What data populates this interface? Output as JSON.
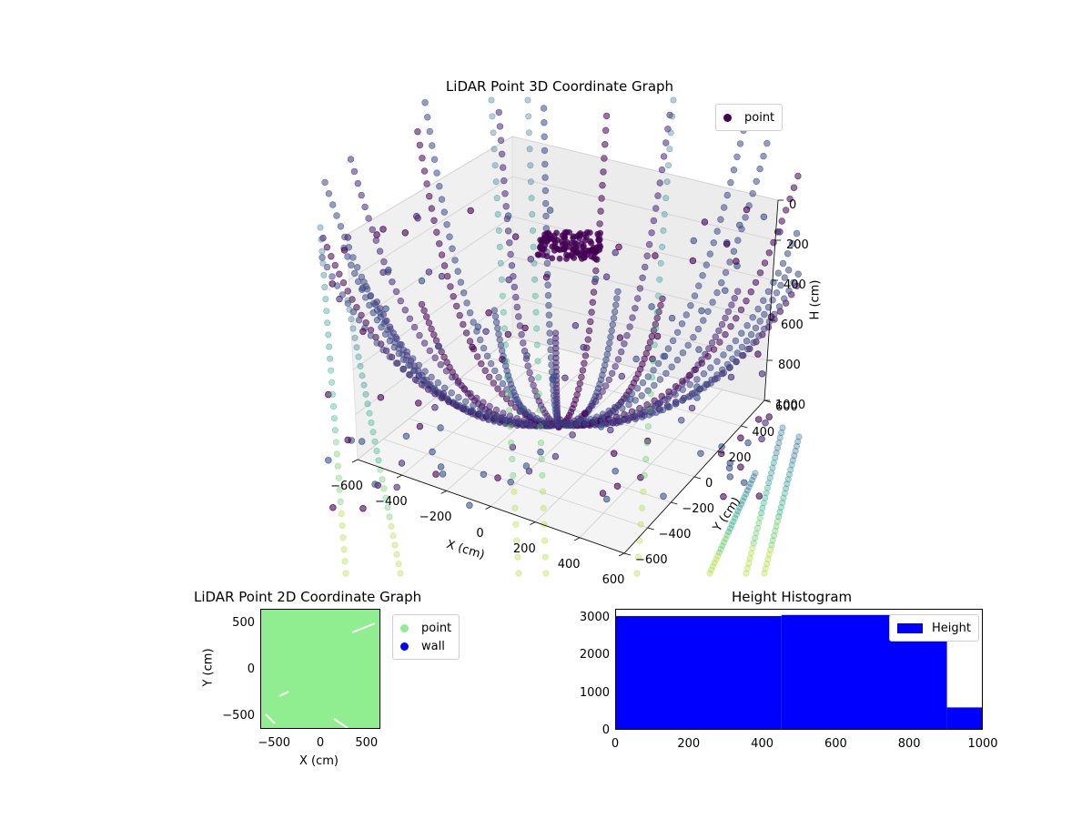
{
  "chart_data": [
    {
      "type": "scatter",
      "title": "LiDAR Point 3D Coordinate Graph",
      "xlabel": "X (cm)",
      "ylabel": "Y (cm)",
      "zlabel": "H (cm)",
      "xticks": [
        "−600",
        "−400",
        "−200",
        "0",
        "200",
        "400",
        "600"
      ],
      "yticks": [
        "−600",
        "−400",
        "−200",
        "0",
        "200",
        "400",
        "600"
      ],
      "zticks": [
        "0",
        "200",
        "400",
        "600",
        "800",
        "1000"
      ],
      "zlim": [
        0,
        1000
      ],
      "z_inverted": true,
      "colormap": "viridis",
      "legend": {
        "label": "point",
        "color": "#440154",
        "placement": "top-right"
      },
      "series": [
        {
          "name": "point",
          "description_values": "dense curved strands of LiDAR points"
        }
      ]
    },
    {
      "type": "scatter",
      "title": "LiDAR Point 2D Coordinate Graph",
      "xlabel": "X (cm)",
      "ylabel": "Y (cm)",
      "xticks": [
        "−500",
        "0",
        "500"
      ],
      "yticks": [
        "500",
        "0",
        "−500"
      ],
      "xlim": [
        -650,
        650
      ],
      "ylim": [
        -650,
        650
      ],
      "legend": [
        {
          "label": "point",
          "color": "#90ee90"
        },
        {
          "label": "wall",
          "color": "#0000ff"
        }
      ]
    },
    {
      "type": "bar",
      "title": "Height Histogram",
      "xticks": [
        "0",
        "200",
        "400",
        "600",
        "800",
        "1000"
      ],
      "yticks": [
        "0",
        "1000",
        "2000",
        "3000"
      ],
      "xlim": [
        0,
        1000
      ],
      "ylim": [
        0,
        3220
      ],
      "bins": [
        {
          "x0": 0,
          "x1": 450,
          "count": 3050
        },
        {
          "x0": 450,
          "x1": 900,
          "count": 3080
        },
        {
          "x0": 900,
          "x1": 1000,
          "count": 620
        }
      ],
      "color": "#0000ff",
      "legend": {
        "label": "Height",
        "placement": "top-right"
      }
    }
  ]
}
